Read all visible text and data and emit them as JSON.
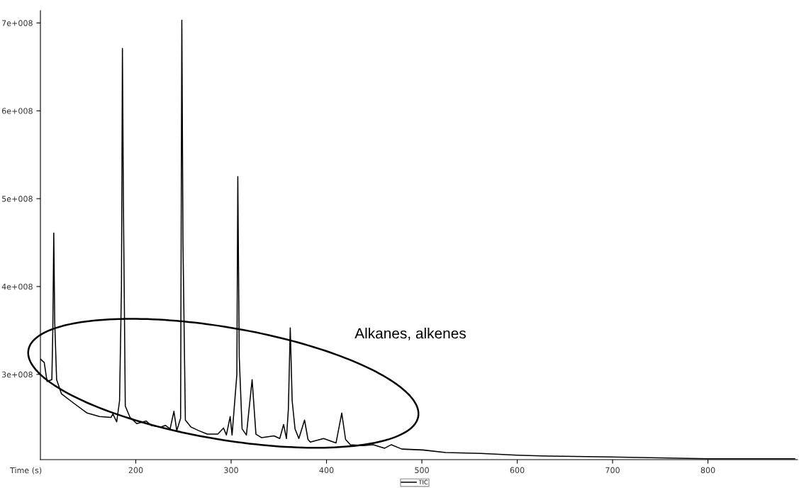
{
  "chart_data": {
    "type": "line",
    "xlabel": "Time (s)",
    "annotations": [
      "Alkanes, alkenes"
    ],
    "xlim": [
      100,
      894
    ],
    "xticks": [
      200,
      300,
      400,
      500,
      600,
      700,
      800
    ],
    "ylim": [
      203000000,
      714000000
    ],
    "yticks": [
      {
        "value": 300000000,
        "label": "3e+008"
      },
      {
        "value": 400000000,
        "label": "4e+008"
      },
      {
        "value": 500000000,
        "label": "5e+008"
      },
      {
        "value": 600000000,
        "label": "6e+008"
      },
      {
        "value": 700000000,
        "label": "7e+008"
      }
    ],
    "grid": false,
    "legend": "bottom",
    "marker": "none",
    "line_style": "solid",
    "series": [
      {
        "name": "TIC",
        "color": "#000000",
        "x": [
          100,
          104,
          107,
          112,
          113,
          114,
          115,
          117,
          122,
          134,
          149,
          162,
          174,
          176,
          180,
          183,
          185,
          186,
          187,
          189,
          194,
          201,
          211,
          216,
          226,
          231,
          236,
          240,
          243,
          247,
          248.3,
          249.5,
          252,
          258,
          266,
          275,
          286,
          292,
          295,
          299,
          301,
          306,
          307,
          308.5,
          311.5,
          316,
          322,
          326,
          332,
          345,
          351,
          355,
          358,
          360,
          362,
          364,
          367,
          371,
          377,
          380.6,
          383,
          397,
          410,
          416,
          420,
          425,
          438.5,
          449,
          461,
          468,
          479,
          501,
          525,
          562,
          600,
          634.5,
          698,
          800,
          891
        ],
        "values": [
          317500000,
          313500000,
          292000000,
          294000000,
          350000000,
          461000000,
          360000000,
          294000000,
          278000000,
          268000000,
          256000000,
          252000000,
          251000000,
          255000000,
          246000000,
          270000000,
          400000000,
          671000000,
          500000000,
          264000000,
          251000000,
          244000000,
          247000000,
          242000000,
          240000000,
          242000000,
          238000000,
          258000000,
          236000000,
          250000000,
          703000000,
          450000000,
          248000000,
          240000000,
          236000000,
          232000000,
          232000000,
          239000000,
          231000000,
          252000000,
          231000000,
          300000000,
          525000000,
          320000000,
          238000000,
          231000000,
          294000000,
          232000000,
          228000000,
          230000000,
          227000000,
          243000000,
          227000000,
          260000000,
          353000000,
          270000000,
          238000000,
          227000000,
          248000000,
          226000000,
          223000000,
          227000000,
          222000000,
          256000000,
          226000000,
          220000000,
          219000000,
          220000000,
          216000000,
          220000000,
          215000000,
          214000000,
          211000000,
          210000000,
          208000000,
          207000000,
          206000000,
          204000000,
          204000000
        ]
      }
    ]
  }
}
